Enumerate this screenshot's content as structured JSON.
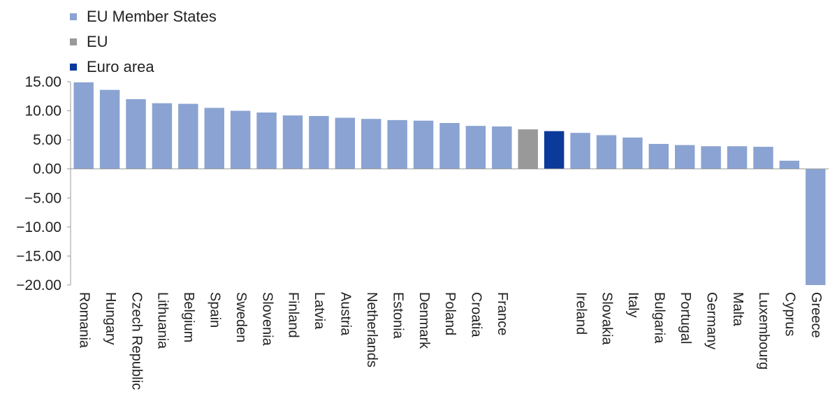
{
  "chart_data": {
    "type": "bar",
    "title": "",
    "xlabel": "",
    "ylabel": "",
    "ylim": [
      -20,
      15
    ],
    "y_ticks": [
      "15.00",
      "10.00",
      "5.00",
      "0.00",
      "−5.00",
      "−10.00",
      "−15.00",
      "−20.00"
    ],
    "y_tick_values": [
      15,
      10,
      5,
      0,
      -5,
      -10,
      -15,
      -20
    ],
    "grid": false,
    "legend_position": "top-left",
    "legend": [
      {
        "label": "EU Member States",
        "color": "#8aa3d2"
      },
      {
        "label": "EU",
        "color": "#999999"
      },
      {
        "label": "Euro area",
        "color": "#0b3a9a"
      }
    ],
    "categories": [
      "Romania",
      "Hungary",
      "Czech Republic",
      "Lithuania",
      "Belgium",
      "Spain",
      "Sweden",
      "Slovenia",
      "Finland",
      "Latvia",
      "Austria",
      "Netherlands",
      "Estonia",
      "Denmark",
      "Poland",
      "Croatia",
      "France",
      "",
      "",
      "Ireland",
      "Slovakia",
      "Italy",
      "Bulgaria",
      "Portugal",
      "Germany",
      "Malta",
      "Luxembourg",
      "Cyprus",
      "Greece"
    ],
    "values": [
      14.9,
      13.6,
      12.0,
      11.3,
      11.2,
      10.5,
      10.0,
      9.7,
      9.2,
      9.1,
      8.8,
      8.6,
      8.4,
      8.3,
      7.9,
      7.4,
      7.3,
      6.8,
      6.5,
      6.2,
      5.8,
      5.4,
      4.3,
      4.1,
      3.9,
      3.9,
      3.8,
      1.4,
      -20.0
    ],
    "groups": [
      "member",
      "member",
      "member",
      "member",
      "member",
      "member",
      "member",
      "member",
      "member",
      "member",
      "member",
      "member",
      "member",
      "member",
      "member",
      "member",
      "member",
      "eu",
      "euro",
      "member",
      "member",
      "member",
      "member",
      "member",
      "member",
      "member",
      "member",
      "member",
      "member"
    ],
    "colors": {
      "member": "#8aa3d2",
      "eu": "#999999",
      "euro": "#0b3a9a"
    }
  }
}
